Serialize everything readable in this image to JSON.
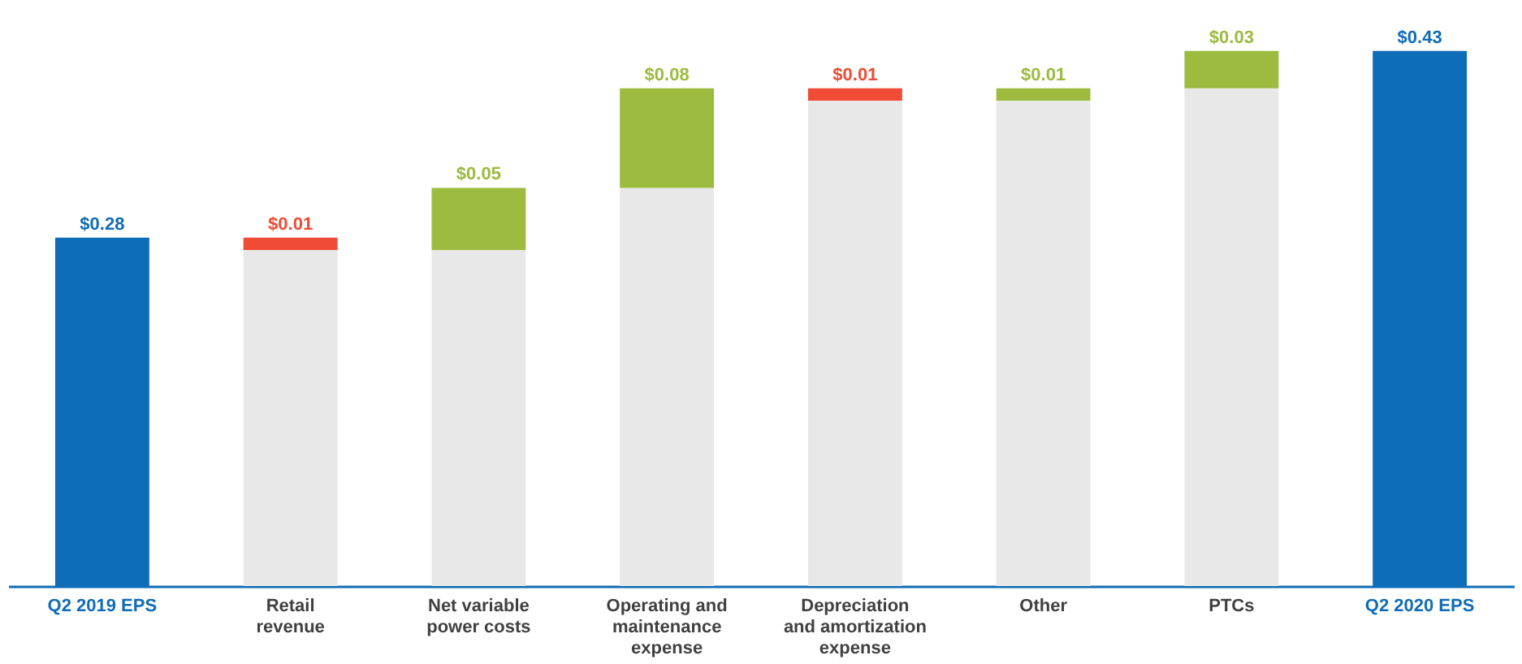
{
  "chart_data": {
    "type": "bar",
    "stacked": true,
    "grid": false,
    "categories": [
      "Q2 2019 EPS",
      "Retail\nrevenue",
      "Net variable\npower costs",
      "Operating and\nmaintenance\nexpense",
      "Depreciation\nand amortization\nexpense",
      "Other",
      "PTCs",
      "Q2 2020 EPS"
    ],
    "series": [
      {
        "color": "#e8e8e8",
        "values": [
          null,
          0.27,
          0.27,
          0.32,
          0.39,
          0.39,
          0.4,
          null
        ]
      },
      {
        "colors": [
          "#0f6cb6",
          "#ef4b35",
          "#9cbb3f",
          "#9cbb3f",
          "#ef4b35",
          "#9cbb3f",
          "#9cbb3f",
          "#0f6cb6"
        ],
        "values": [
          0.28,
          0.01,
          0.05,
          0.08,
          0.01,
          0.01,
          0.03,
          0.43
        ],
        "value_labels": [
          "$0.28",
          "$0.01",
          "$0.05",
          "$0.08",
          "$0.01",
          "$0.01",
          "$0.03",
          "$0.43"
        ]
      }
    ]
  }
}
